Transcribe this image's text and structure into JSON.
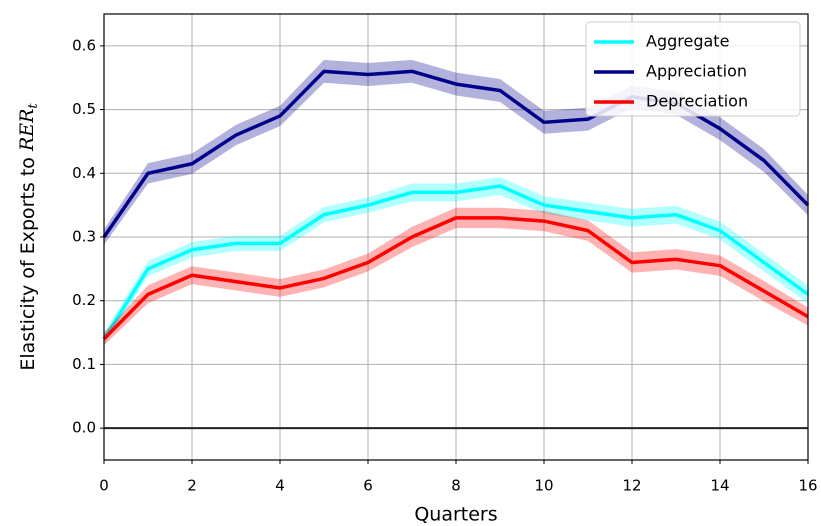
{
  "chart_data": {
    "type": "line",
    "xlabel": "Quarters",
    "ylabel": {
      "text": "Elasticity of Exports to ",
      "math": "RER",
      "sub": "t"
    },
    "x": [
      0,
      1,
      2,
      3,
      4,
      5,
      6,
      7,
      8,
      9,
      10,
      11,
      12,
      13,
      14,
      15,
      16
    ],
    "series": [
      {
        "name": "Aggregate",
        "color": "#00ffff",
        "values": [
          0.14,
          0.25,
          0.28,
          0.29,
          0.29,
          0.335,
          0.35,
          0.37,
          0.37,
          0.38,
          0.35,
          0.34,
          0.33,
          0.335,
          0.31,
          0.26,
          0.21
        ],
        "error": [
          0.01,
          0.012,
          0.012,
          0.012,
          0.012,
          0.012,
          0.012,
          0.014,
          0.014,
          0.014,
          0.014,
          0.014,
          0.014,
          0.014,
          0.014,
          0.014,
          0.014
        ]
      },
      {
        "name": "Appreciation",
        "color": "#00008b",
        "values": [
          0.3,
          0.4,
          0.415,
          0.46,
          0.49,
          0.56,
          0.555,
          0.56,
          0.54,
          0.53,
          0.48,
          0.485,
          0.52,
          0.51,
          0.47,
          0.42,
          0.35
        ],
        "error": [
          0.012,
          0.016,
          0.016,
          0.016,
          0.016,
          0.018,
          0.018,
          0.018,
          0.018,
          0.018,
          0.018,
          0.018,
          0.018,
          0.018,
          0.018,
          0.018,
          0.016
        ]
      },
      {
        "name": "Depreciation",
        "color": "#ff0000",
        "values": [
          0.14,
          0.21,
          0.24,
          0.23,
          0.22,
          0.235,
          0.26,
          0.3,
          0.33,
          0.33,
          0.325,
          0.31,
          0.26,
          0.265,
          0.255,
          0.215,
          0.175
        ],
        "error": [
          0.01,
          0.014,
          0.014,
          0.014,
          0.014,
          0.014,
          0.014,
          0.016,
          0.016,
          0.016,
          0.016,
          0.016,
          0.016,
          0.016,
          0.016,
          0.016,
          0.014
        ]
      }
    ],
    "hline": 0,
    "xlim": [
      0,
      16
    ],
    "xticks": [
      0,
      2,
      4,
      6,
      8,
      10,
      12,
      14,
      16
    ],
    "ylim": [
      -0.05,
      0.65
    ],
    "yticks": [
      {
        "value": 0,
        "label": "0.0"
      },
      0.1,
      0.2,
      0.3,
      0.4,
      0.5,
      0.6
    ],
    "grid": true,
    "legend": "upper right"
  }
}
